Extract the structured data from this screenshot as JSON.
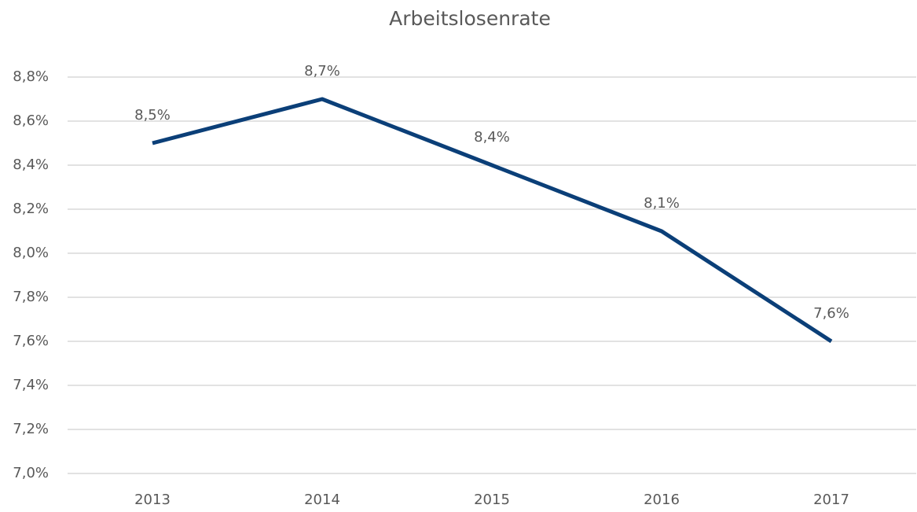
{
  "chart_data": {
    "type": "line",
    "title": "Arbeitslosenrate",
    "categories": [
      "2013",
      "2014",
      "2015",
      "2016",
      "2017"
    ],
    "series": [
      {
        "name": "Arbeitslosenrate",
        "color": "#0b3f78",
        "values": [
          8.5,
          8.7,
          8.4,
          8.1,
          7.6
        ],
        "value_labels": [
          "8,5%",
          "8,7%",
          "8,4%",
          "8,1%",
          "7,6%"
        ]
      }
    ],
    "ylim": [
      7.0,
      8.8
    ],
    "yticks": [
      {
        "value": 7.0,
        "label": "7,0%"
      },
      {
        "value": 7.2,
        "label": "7,2%"
      },
      {
        "value": 7.4,
        "label": "7,4%"
      },
      {
        "value": 7.6,
        "label": "7,6%"
      },
      {
        "value": 7.8,
        "label": "7,8%"
      },
      {
        "value": 8.0,
        "label": "8,0%"
      },
      {
        "value": 8.2,
        "label": "8,2%"
      },
      {
        "value": 8.4,
        "label": "8,4%"
      },
      {
        "value": 8.6,
        "label": "8,6%"
      },
      {
        "value": 8.8,
        "label": "8,8%"
      }
    ],
    "grid": true
  }
}
